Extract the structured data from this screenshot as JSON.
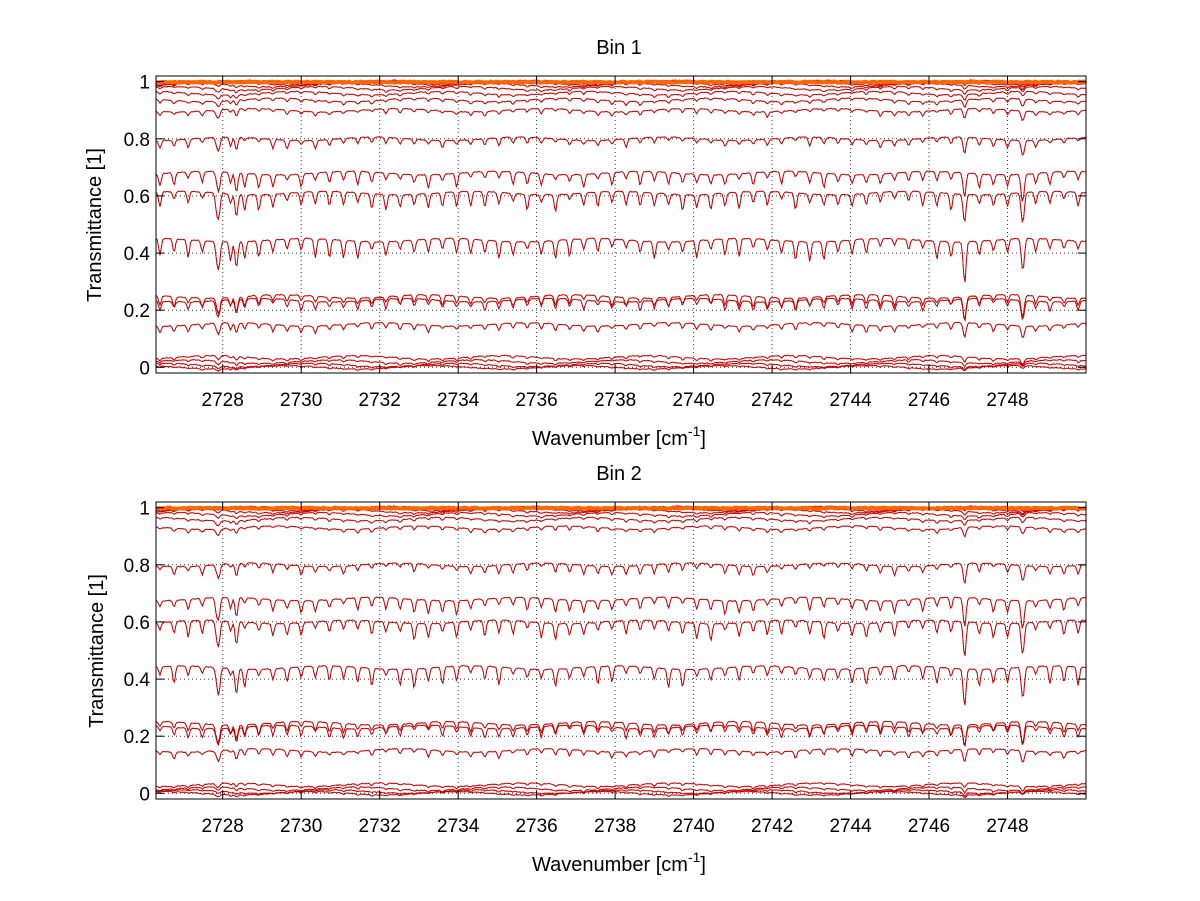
{
  "colors": {
    "data_line": "#cc0000",
    "model_line": "#000000",
    "top_overlay": "#ff6600",
    "grid": "#000000",
    "axes": "#000000"
  },
  "chart_data": [
    {
      "type": "line",
      "title": "Bin 1",
      "xlabel": "Wavenumber [cm",
      "xlabel_sup": "-1",
      "xlabel_close": "]",
      "ylabel": "Transmittance [1]",
      "xlim": [
        2726.3,
        2750
      ],
      "ylim": [
        -0.02,
        1.02
      ],
      "grid": true,
      "x_ticks": [
        2728,
        2730,
        2732,
        2734,
        2736,
        2738,
        2740,
        2742,
        2744,
        2746,
        2748
      ],
      "x_tick_labels": [
        "2728",
        "2730",
        "2732",
        "2734",
        "2736",
        "2738",
        "2740",
        "2742",
        "2744",
        "2746",
        "2748"
      ],
      "y_ticks": [
        0,
        0.2,
        0.4,
        0.6,
        0.8,
        1
      ],
      "y_tick_labels": [
        "0",
        "0.2",
        "0.4",
        "0.6",
        "0.8",
        "1"
      ],
      "series_baselines": [
        0.999,
        0.995,
        0.988,
        0.977,
        0.96,
        0.936,
        0.9,
        0.8,
        0.68,
        0.61,
        0.445,
        0.248,
        0.235,
        0.15,
        0.035,
        0.02,
        0.008,
        0.0
      ],
      "absorption_line_spacing": 0.36,
      "absorption_lines_start": 2726.4
    },
    {
      "type": "line",
      "title": "Bin 2",
      "xlabel": "Wavenumber [cm",
      "xlabel_sup": "-1",
      "xlabel_close": "]",
      "ylabel": "Transmittance [1]",
      "xlim": [
        2726.3,
        2750
      ],
      "ylim": [
        -0.02,
        1.02
      ],
      "grid": true,
      "x_ticks": [
        2728,
        2730,
        2732,
        2734,
        2736,
        2738,
        2740,
        2742,
        2744,
        2746,
        2748
      ],
      "x_tick_labels": [
        "2728",
        "2730",
        "2732",
        "2734",
        "2736",
        "2738",
        "2740",
        "2742",
        "2744",
        "2746",
        "2748"
      ],
      "y_ticks": [
        0,
        0.2,
        0.4,
        0.6,
        0.8,
        1
      ],
      "y_tick_labels": [
        "0",
        "0.2",
        "0.4",
        "0.6",
        "0.8",
        "1"
      ],
      "series_baselines": [
        0.999,
        0.995,
        0.988,
        0.977,
        0.96,
        0.93,
        0.8,
        0.68,
        0.6,
        0.44,
        0.245,
        0.232,
        0.15,
        0.03,
        0.016,
        0.006,
        0.0
      ],
      "absorption_line_spacing": 0.36,
      "absorption_lines_start": 2726.4
    }
  ]
}
